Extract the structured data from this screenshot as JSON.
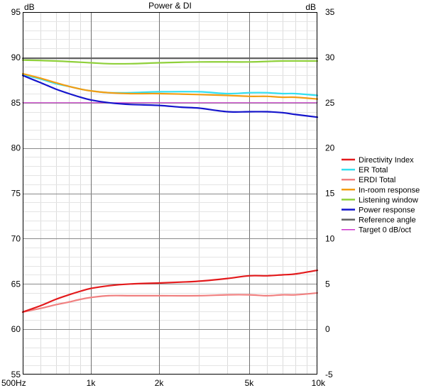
{
  "chart_data": {
    "type": "line",
    "title": "Power & DI",
    "ylabel_left": "dB",
    "ylabel_right": "dB",
    "xscale": "log",
    "xlim": [
      500,
      10000
    ],
    "ylim_left": [
      55,
      95
    ],
    "ylim_right": [
      -5,
      35
    ],
    "x_ticks": [
      {
        "value": 500,
        "label": "500Hz"
      },
      {
        "value": 1000,
        "label": "1k"
      },
      {
        "value": 2000,
        "label": "2k"
      },
      {
        "value": 5000,
        "label": "5k"
      },
      {
        "value": 10000,
        "label": "10k"
      }
    ],
    "y_ticks_left": [
      55,
      60,
      65,
      70,
      75,
      80,
      85,
      90,
      95
    ],
    "y_ticks_right": [
      -5,
      0,
      5,
      10,
      15,
      20,
      25,
      30,
      35
    ],
    "grid": true,
    "legend_position": "right",
    "series": [
      {
        "name": "Directivity Index",
        "color": "#e31a1c",
        "axis": "right",
        "x": [
          500,
          600,
          700,
          800,
          900,
          1000,
          1200,
          1500,
          2000,
          2500,
          3000,
          4000,
          5000,
          6000,
          7000,
          8000,
          10000
        ],
        "y": [
          1.9,
          2.6,
          3.3,
          3.8,
          4.2,
          4.5,
          4.8,
          5.0,
          5.1,
          5.2,
          5.3,
          5.6,
          5.9,
          5.9,
          6.0,
          6.1,
          6.5
        ]
      },
      {
        "name": "ER Total",
        "color": "#33e0f0",
        "axis": "left",
        "x": [
          500,
          600,
          700,
          800,
          900,
          1000,
          1200,
          1500,
          2000,
          3000,
          4000,
          5000,
          6000,
          7000,
          8000,
          10000
        ],
        "y": [
          88.1,
          87.6,
          87.1,
          86.8,
          86.5,
          86.3,
          86.1,
          86.1,
          86.2,
          86.2,
          86.0,
          86.1,
          86.1,
          86.0,
          86.0,
          85.8
        ]
      },
      {
        "name": "ERDI Total",
        "color": "#f08080",
        "axis": "right",
        "x": [
          500,
          600,
          700,
          800,
          900,
          1000,
          1200,
          1500,
          2000,
          3000,
          4000,
          5000,
          6000,
          7000,
          8000,
          10000
        ],
        "y": [
          1.9,
          2.3,
          2.7,
          3.0,
          3.3,
          3.5,
          3.7,
          3.7,
          3.7,
          3.7,
          3.8,
          3.8,
          3.7,
          3.8,
          3.8,
          4.0
        ]
      },
      {
        "name": "In-room response",
        "color": "#f39c12",
        "axis": "left",
        "x": [
          500,
          600,
          700,
          800,
          900,
          1000,
          1200,
          1500,
          2000,
          3000,
          4000,
          5000,
          6000,
          7000,
          8000,
          10000
        ],
        "y": [
          88.2,
          87.7,
          87.2,
          86.8,
          86.5,
          86.3,
          86.1,
          86.0,
          86.0,
          85.9,
          85.8,
          85.7,
          85.7,
          85.6,
          85.6,
          85.4
        ]
      },
      {
        "name": "Listening window",
        "color": "#8fd03a",
        "axis": "left",
        "x": [
          500,
          700,
          1000,
          1200,
          1500,
          2000,
          3000,
          5000,
          7000,
          10000
        ],
        "y": [
          89.7,
          89.6,
          89.4,
          89.3,
          89.3,
          89.4,
          89.5,
          89.5,
          89.6,
          89.6
        ]
      },
      {
        "name": "Power response",
        "color": "#1515cc",
        "axis": "left",
        "x": [
          500,
          600,
          700,
          800,
          900,
          1000,
          1200,
          1500,
          2000,
          2500,
          3000,
          4000,
          5000,
          6000,
          7000,
          8000,
          10000
        ],
        "y": [
          88.0,
          87.2,
          86.5,
          86.0,
          85.6,
          85.3,
          85.0,
          84.8,
          84.7,
          84.5,
          84.4,
          84.0,
          84.0,
          84.0,
          83.9,
          83.7,
          83.4
        ]
      },
      {
        "name": "Reference angle",
        "color": "#606060",
        "axis": "left",
        "x": [
          500,
          10000
        ],
        "y": [
          89.9,
          89.9
        ]
      },
      {
        "name": "Target 0 dB/oct",
        "color": "#cc33cc",
        "axis": "left",
        "x": [
          500,
          10000
        ],
        "y": [
          85.0,
          85.0
        ]
      }
    ]
  }
}
